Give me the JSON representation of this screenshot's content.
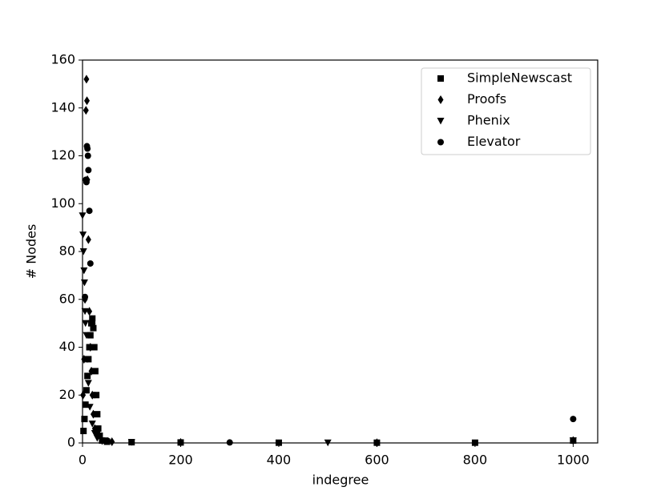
{
  "chart_data": {
    "type": "scatter",
    "x_label": "indegree",
    "y_label": "# Nodes",
    "xlim": [
      0,
      1050
    ],
    "ylim": [
      0,
      160
    ],
    "xticks": [
      0,
      200,
      400,
      600,
      800,
      1000
    ],
    "yticks": [
      0,
      20,
      40,
      60,
      80,
      100,
      120,
      140,
      160
    ],
    "legend": "upper right",
    "series": [
      {
        "name": "SimpleNewscast",
        "color": "#000000",
        "marker": "square",
        "x": [
          2,
          4,
          6,
          8,
          10,
          12,
          14,
          16,
          18,
          20,
          22,
          24,
          26,
          28,
          30,
          32,
          35,
          40,
          50,
          100,
          200,
          400,
          600,
          800,
          1000
        ],
        "values": [
          5,
          10,
          16,
          22,
          28,
          35,
          40,
          45,
          50,
          52,
          48,
          40,
          30,
          20,
          12,
          6,
          3,
          1,
          0.5,
          0.3,
          0.2,
          0.1,
          0.1,
          0.1,
          1
        ]
      },
      {
        "name": "Proofs",
        "color": "#000000",
        "marker": "diamond",
        "x": [
          1,
          3,
          5,
          7,
          8,
          9,
          10,
          12,
          14,
          16,
          18,
          20,
          22,
          25,
          30,
          40,
          60,
          200,
          600,
          1000
        ],
        "values": [
          20,
          35,
          60,
          139,
          152,
          143,
          110,
          85,
          55,
          40,
          30,
          20,
          12,
          6,
          3,
          1,
          0.5,
          0.2,
          0.1,
          1
        ]
      },
      {
        "name": "Phenix",
        "color": "#000000",
        "marker": "triangle_down",
        "x": [
          0,
          1,
          2,
          3,
          4,
          5,
          6,
          8,
          10,
          12,
          15,
          20,
          25,
          30,
          40,
          100,
          500,
          1000
        ],
        "values": [
          95,
          87,
          80,
          72,
          67,
          55,
          50,
          45,
          35,
          25,
          15,
          8,
          4,
          2,
          1,
          0.3,
          0.1,
          1
        ]
      },
      {
        "name": "Elevator",
        "color": "#000000",
        "marker": "circle",
        "x": [
          5,
          7,
          8,
          9,
          10,
          11,
          12,
          14,
          16,
          20,
          25,
          30,
          50,
          300,
          1000
        ],
        "values": [
          61,
          110,
          109,
          124,
          123,
          120,
          114,
          97,
          75,
          50,
          20,
          5,
          1,
          0.2,
          10
        ]
      }
    ]
  }
}
